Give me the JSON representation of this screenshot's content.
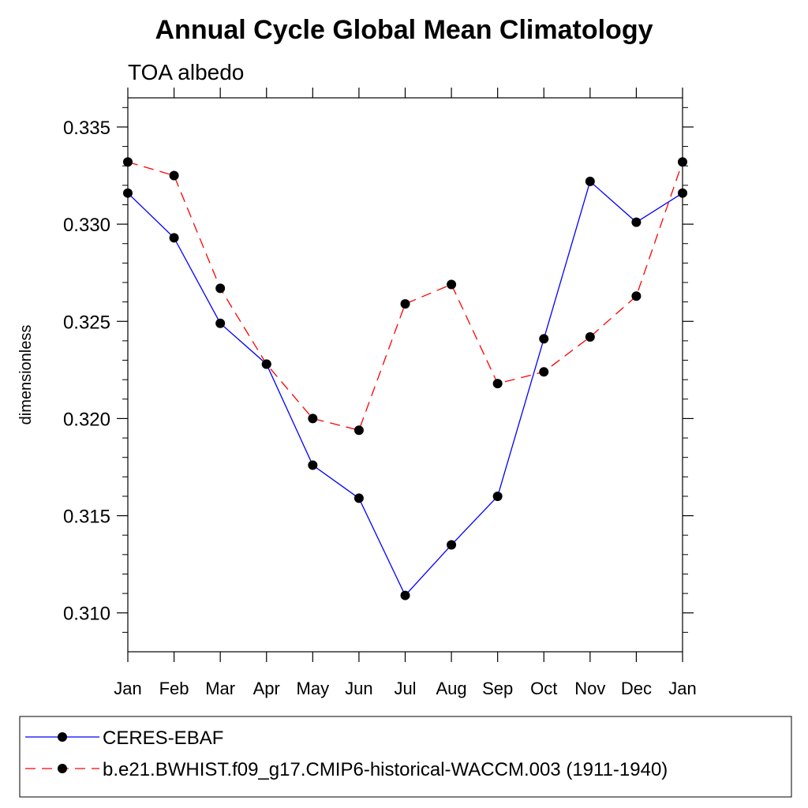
{
  "chart_data": {
    "type": "line",
    "title": "Annual Cycle Global Mean Climatology",
    "subtitle": "TOA albedo",
    "xlabel": "",
    "ylabel": "dimensionless",
    "categories": [
      "Jan",
      "Feb",
      "Mar",
      "Apr",
      "May",
      "Jun",
      "Jul",
      "Aug",
      "Sep",
      "Oct",
      "Nov",
      "Dec",
      "Jan"
    ],
    "ylim": [
      0.308,
      0.3365
    ],
    "yticks": [
      0.31,
      0.315,
      0.32,
      0.325,
      0.33,
      0.335
    ],
    "ytick_labels": [
      "0.310",
      "0.315",
      "0.320",
      "0.325",
      "0.330",
      "0.335"
    ],
    "series": [
      {
        "name": "CERES-EBAF",
        "color": "#0000ff",
        "dash": "solid",
        "values": [
          0.3316,
          0.3293,
          0.3249,
          0.3228,
          0.3176,
          0.3159,
          0.3109,
          0.3135,
          0.316,
          0.3241,
          0.3322,
          0.3301,
          0.3316
        ]
      },
      {
        "name": "b.e21.BWHIST.f09_g17.CMIP6-historical-WACCM.003 (1911-1940)",
        "color": "#ff0000",
        "dash": "dashed",
        "values": [
          0.3332,
          0.3325,
          0.3267,
          0.3228,
          0.32,
          0.3194,
          0.3259,
          0.3269,
          0.3218,
          0.3224,
          0.3242,
          0.3263,
          0.3332
        ]
      }
    ],
    "legend_position": "bottom",
    "grid": false
  }
}
